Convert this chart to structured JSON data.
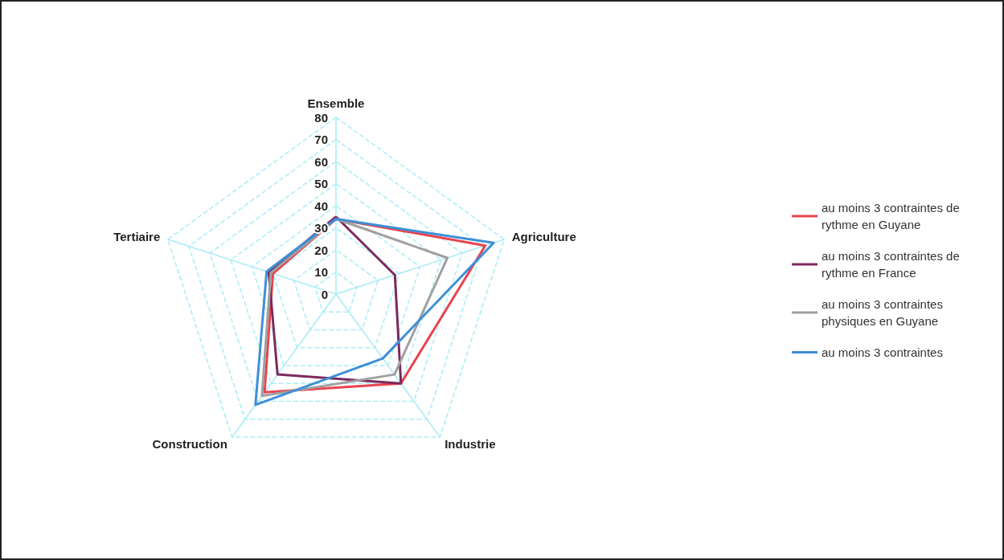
{
  "chart_data": {
    "type": "radar",
    "categories": [
      "Ensemble",
      "Agriculture",
      "Industrie",
      "Construction",
      "Tertiaire"
    ],
    "series": [
      {
        "name": "au moins 3 contraintes de rythme en Guyane",
        "color": "#e8434f",
        "values": [
          34,
          71,
          50,
          55,
          30
        ]
      },
      {
        "name": "au moins 3 contraintes de rythme en France",
        "color": "#7b2a5e",
        "values": [
          35,
          28,
          50,
          45,
          32
        ]
      },
      {
        "name": "au moins 3 contraintes physiques en Guyane",
        "color": "#a0a0a0",
        "values": [
          34,
          53,
          45,
          57,
          31
        ]
      },
      {
        "name": "au moins 3 contraintes",
        "color": "#3f8fd8",
        "values": [
          34,
          75,
          36,
          62,
          33
        ]
      }
    ],
    "ylim": [
      0,
      80
    ],
    "yticks": [
      0,
      10,
      20,
      30,
      40,
      50,
      60,
      70,
      80
    ],
    "grid": true,
    "legend": "right",
    "marker": "none",
    "line_style": "solid"
  }
}
